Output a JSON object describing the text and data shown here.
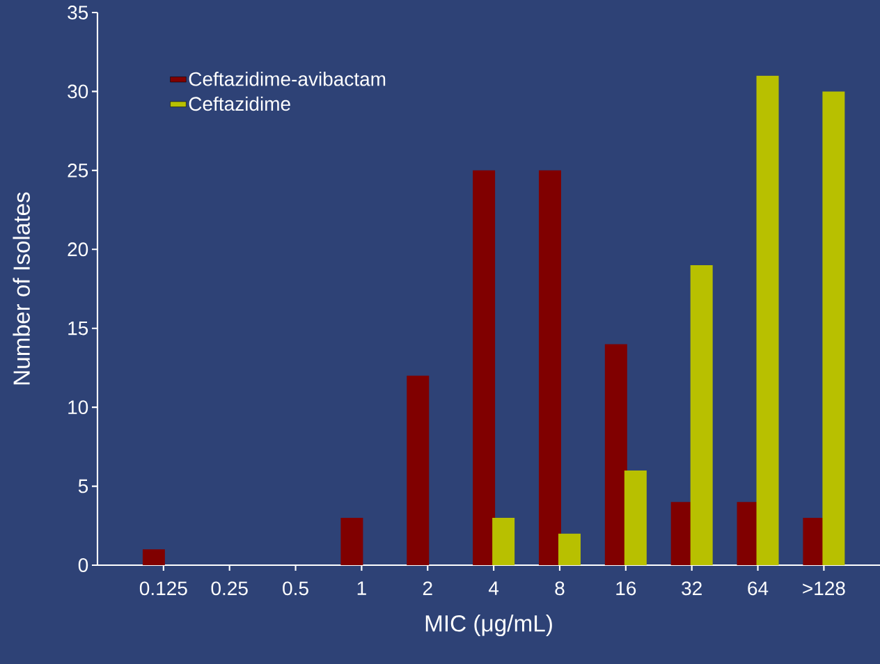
{
  "chart_data": {
    "type": "bar",
    "xlabel": "MIC (μg/mL)",
    "ylabel": "Number of Isolates",
    "categories": [
      "0.125",
      "0.25",
      "0.5",
      "1",
      "2",
      "4",
      "8",
      "16",
      "32",
      "64",
      ">128"
    ],
    "series": [
      {
        "name": "Ceftazidime-avibactam",
        "color": "#800000",
        "values": [
          1,
          0,
          0,
          3,
          12,
          25,
          25,
          14,
          4,
          4,
          3
        ]
      },
      {
        "name": "Ceftazidime",
        "color": "#b8c000",
        "values": [
          0,
          0,
          0,
          0,
          0,
          3,
          2,
          6,
          19,
          31,
          30
        ]
      }
    ],
    "ylim": [
      0,
      35
    ],
    "yticks": [
      0,
      5,
      10,
      15,
      20,
      25,
      30,
      35
    ],
    "legend": "top left",
    "grid": false
  }
}
